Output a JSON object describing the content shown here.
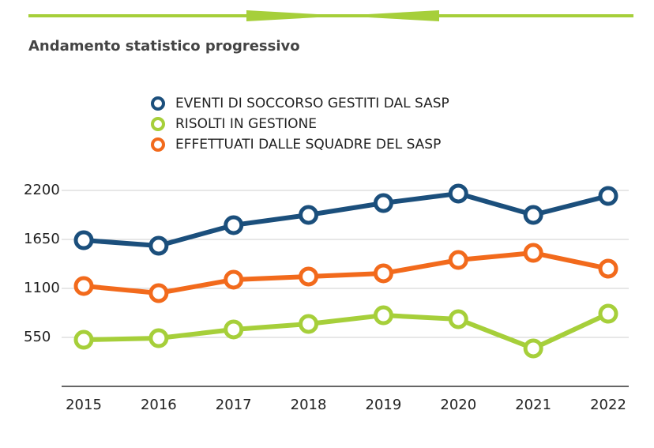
{
  "chart_data": {
    "type": "line",
    "title": "Andamento statistico progressivo",
    "categories": [
      "2015",
      "2016",
      "2017",
      "2018",
      "2019",
      "2020",
      "2021",
      "2022"
    ],
    "series": [
      {
        "name": "EVENTI DI SOCCORSO GESTITI DAL SASP",
        "color": "#1b4f7c",
        "values": [
          1641,
          1579,
          1810,
          1925,
          2058,
          2165,
          1925,
          2138
        ]
      },
      {
        "name": "RISOLTI IN GESTIONE",
        "color": "#a6cf3a",
        "values": [
          523,
          541,
          639,
          701,
          798,
          754,
          426,
          816
        ]
      },
      {
        "name": "EFFETTUATI DALLE SQUADRE DEL SASP",
        "color": "#f26a1c",
        "values": [
          1127,
          1047,
          1198,
          1233,
          1269,
          1419,
          1499,
          1322
        ]
      }
    ],
    "ylim": [
      0,
      2200
    ],
    "yticks": [
      550,
      1100,
      1650,
      2200
    ],
    "grid": true
  }
}
